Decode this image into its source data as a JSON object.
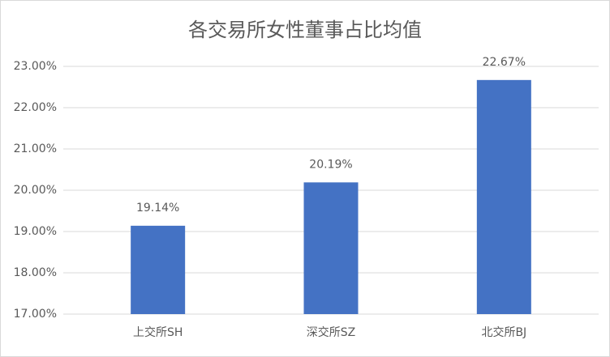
{
  "chart_data": {
    "type": "bar",
    "title": "各交易所女性董事占比均值",
    "categories": [
      "上交所SH",
      "深交所SZ",
      "北交所BJ"
    ],
    "values": [
      19.14,
      20.19,
      22.67
    ],
    "value_labels": [
      "19.14%",
      "20.19%",
      "22.67%"
    ],
    "color": "#4472c4",
    "ylim": [
      17,
      23
    ],
    "yticks": [
      {
        "value": 17,
        "label": "17.00%"
      },
      {
        "value": 18,
        "label": "18.00%"
      },
      {
        "value": 19,
        "label": "19.00%"
      },
      {
        "value": 20,
        "label": "20.00%"
      },
      {
        "value": 21,
        "label": "21.00%"
      },
      {
        "value": 22,
        "label": "22.00%"
      },
      {
        "value": 23,
        "label": "23.00%"
      }
    ],
    "grid": true
  }
}
